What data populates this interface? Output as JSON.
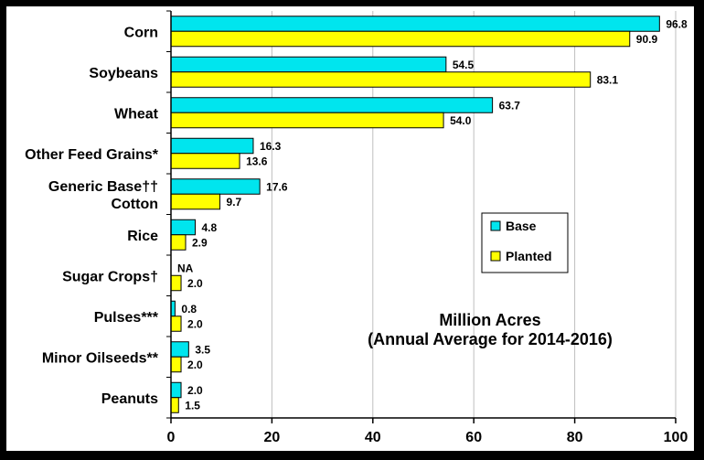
{
  "chart_data": {
    "type": "bar",
    "orientation": "horizontal",
    "categories": [
      "Corn",
      "Soybeans",
      "Wheat",
      "Other Feed Grains*",
      "Generic Base††\nCotton",
      "Rice",
      "Sugar Crops†",
      "Pulses***",
      "Minor Oilseeds**",
      "Peanuts"
    ],
    "series": [
      {
        "name": "Base",
        "color": "#00e5ee",
        "values": [
          96.8,
          54.5,
          63.7,
          16.3,
          17.6,
          4.8,
          null,
          0.8,
          3.5,
          2.0
        ],
        "labels": [
          "96.8",
          "54.5",
          "63.7",
          "16.3",
          "17.6",
          "4.8",
          "NA",
          "0.8",
          "3.5",
          "2.0"
        ]
      },
      {
        "name": "Planted",
        "color": "#ffff00",
        "values": [
          90.9,
          83.1,
          54.0,
          13.6,
          9.7,
          2.9,
          2.0,
          2.0,
          2.0,
          1.5
        ],
        "labels": [
          "90.9",
          "83.1",
          "54.0",
          "13.6",
          "9.7",
          "2.9",
          "2.0",
          "2.0",
          "2.0",
          "1.5"
        ]
      }
    ],
    "xlim": [
      0,
      100
    ],
    "xticks": [
      "0",
      "20",
      "40",
      "60",
      "80",
      "100"
    ],
    "annotation": [
      "Million Acres",
      "(Annual Average for 2014-2016)"
    ],
    "legend_position": "middle-right",
    "grid": "vertical"
  }
}
